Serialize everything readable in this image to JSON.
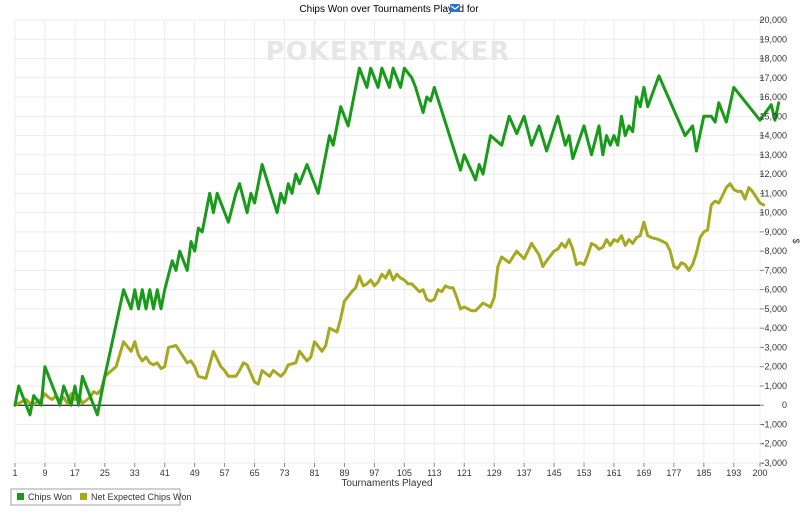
{
  "watermark": "POKERTRACKER",
  "chart_data": {
    "type": "line",
    "title": "Chips Won over Tournaments Played for",
    "xlabel": "Tournaments Played",
    "ylabel": "",
    "xlim": [
      1,
      200
    ],
    "ylim": [
      -3000,
      20000
    ],
    "x_ticks": [
      "1",
      "9",
      "17",
      "25",
      "33",
      "41",
      "49",
      "57",
      "65",
      "73",
      "81",
      "89",
      "97",
      "105",
      "113",
      "121",
      "129",
      "137",
      "145",
      "153",
      "161",
      "169",
      "177",
      "185",
      "193",
      "200"
    ],
    "y_ticks": [
      "20,000",
      "19,000",
      "18,000",
      "17,000",
      "16,000",
      "15,000",
      "14,000",
      "13,000",
      "12,000",
      "11,000",
      "10,000",
      "9,000",
      "8,000",
      "7,000",
      "6,000",
      "5,000",
      "4,000",
      "3,000",
      "2,000",
      "1,000",
      "0",
      "-1,000",
      "-2,000",
      "-3,000"
    ],
    "legend_position": "bottom-left",
    "grid": true,
    "series": [
      {
        "name": "Chips Won",
        "color": "#1a9a1a",
        "points": [
          [
            1,
            0
          ],
          [
            2,
            1000
          ],
          [
            4,
            0
          ],
          [
            5,
            -500
          ],
          [
            6,
            500
          ],
          [
            8,
            0
          ],
          [
            9,
            2000
          ],
          [
            12,
            500
          ],
          [
            13,
            0
          ],
          [
            14,
            1000
          ],
          [
            16,
            0
          ],
          [
            17,
            1000
          ],
          [
            18,
            0
          ],
          [
            19,
            1500
          ],
          [
            22,
            0
          ],
          [
            23,
            -500
          ],
          [
            25,
            1500
          ],
          [
            30,
            6000
          ],
          [
            32,
            5000
          ],
          [
            33,
            6000
          ],
          [
            34,
            5000
          ],
          [
            35,
            6000
          ],
          [
            36,
            5000
          ],
          [
            37,
            6000
          ],
          [
            38,
            5000
          ],
          [
            39,
            6000
          ],
          [
            40,
            5000
          ],
          [
            41,
            6000
          ],
          [
            43,
            7500
          ],
          [
            44,
            7000
          ],
          [
            45,
            8000
          ],
          [
            47,
            7000
          ],
          [
            48,
            8500
          ],
          [
            49,
            8000
          ],
          [
            50,
            9200
          ],
          [
            51,
            9000
          ],
          [
            53,
            11000
          ],
          [
            54,
            10000
          ],
          [
            55,
            11000
          ],
          [
            58,
            9500
          ],
          [
            60,
            11000
          ],
          [
            61,
            11500
          ],
          [
            63,
            10000
          ],
          [
            64,
            11000
          ],
          [
            65,
            10500
          ],
          [
            67,
            12500
          ],
          [
            71,
            10000
          ],
          [
            72,
            11000
          ],
          [
            73,
            10500
          ],
          [
            74,
            11500
          ],
          [
            75,
            11000
          ],
          [
            76,
            12000
          ],
          [
            77,
            11500
          ],
          [
            79,
            12500
          ],
          [
            82,
            11000
          ],
          [
            85,
            14000
          ],
          [
            86,
            13500
          ],
          [
            88,
            15500
          ],
          [
            90,
            14500
          ],
          [
            93,
            17500
          ],
          [
            95,
            16500
          ],
          [
            96,
            17500
          ],
          [
            98,
            16500
          ],
          [
            99,
            17500
          ],
          [
            101,
            16500
          ],
          [
            102,
            17500
          ],
          [
            104,
            16500
          ],
          [
            105,
            17500
          ],
          [
            107,
            17000
          ],
          [
            108,
            16500
          ],
          [
            110,
            15200
          ],
          [
            111,
            16000
          ],
          [
            112,
            15800
          ],
          [
            113,
            16500
          ],
          [
            120,
            12200
          ],
          [
            121,
            13000
          ],
          [
            124,
            11700
          ],
          [
            125,
            12500
          ],
          [
            126,
            12000
          ],
          [
            128,
            14000
          ],
          [
            131,
            13500
          ],
          [
            133,
            15000
          ],
          [
            135,
            14100
          ],
          [
            137,
            15000
          ],
          [
            139,
            13500
          ],
          [
            141,
            14500
          ],
          [
            143,
            13200
          ],
          [
            146,
            15000
          ],
          [
            148,
            13500
          ],
          [
            149,
            14000
          ],
          [
            150,
            12800
          ],
          [
            153,
            14500
          ],
          [
            155,
            13000
          ],
          [
            157,
            14500
          ],
          [
            158,
            13000
          ],
          [
            159,
            14000
          ],
          [
            160,
            13500
          ],
          [
            161,
            14000
          ],
          [
            162,
            13500
          ],
          [
            163,
            15000
          ],
          [
            164,
            14000
          ],
          [
            165,
            14500
          ],
          [
            166,
            14200
          ],
          [
            167,
            16000
          ],
          [
            168,
            15500
          ],
          [
            169,
            16500
          ],
          [
            170,
            15500
          ],
          [
            173,
            17100
          ],
          [
            180,
            14000
          ],
          [
            182,
            14500
          ],
          [
            183,
            13200
          ],
          [
            185,
            15000
          ],
          [
            187,
            15000
          ],
          [
            188,
            14700
          ],
          [
            189,
            15700
          ],
          [
            191,
            14700
          ],
          [
            193,
            16500
          ],
          [
            200,
            14800
          ],
          [
            203,
            15600
          ],
          [
            204,
            14800
          ],
          [
            205,
            15700
          ]
        ]
      },
      {
        "name": "Net Expected Chips Won",
        "color": "#a8a820",
        "points": [
          [
            1,
            0
          ],
          [
            2,
            100
          ],
          [
            4,
            300
          ],
          [
            5,
            100
          ],
          [
            6,
            50
          ],
          [
            8,
            300
          ],
          [
            9,
            600
          ],
          [
            10,
            400
          ],
          [
            11,
            300
          ],
          [
            12,
            500
          ],
          [
            13,
            200
          ],
          [
            14,
            400
          ],
          [
            15,
            100
          ],
          [
            16,
            600
          ],
          [
            17,
            300
          ],
          [
            18,
            500
          ],
          [
            19,
            100
          ],
          [
            21,
            400
          ],
          [
            22,
            700
          ],
          [
            23,
            600
          ],
          [
            24,
            800
          ],
          [
            25,
            1500
          ],
          [
            28,
            2000
          ],
          [
            30,
            3300
          ],
          [
            32,
            2800
          ],
          [
            33,
            3300
          ],
          [
            34,
            2600
          ],
          [
            35,
            2300
          ],
          [
            36,
            2500
          ],
          [
            37,
            2200
          ],
          [
            38,
            2100
          ],
          [
            39,
            2200
          ],
          [
            40,
            1900
          ],
          [
            41,
            2000
          ],
          [
            42,
            3000
          ],
          [
            44,
            3100
          ],
          [
            45,
            2800
          ],
          [
            46,
            2500
          ],
          [
            47,
            2200
          ],
          [
            48,
            2300
          ],
          [
            49,
            2000
          ],
          [
            50,
            1500
          ],
          [
            52,
            1400
          ],
          [
            54,
            2800
          ],
          [
            56,
            2000
          ],
          [
            57,
            1800
          ],
          [
            58,
            1500
          ],
          [
            60,
            1500
          ],
          [
            61,
            1800
          ],
          [
            62,
            2200
          ],
          [
            63,
            2100
          ],
          [
            65,
            1200
          ],
          [
            66,
            1100
          ],
          [
            67,
            1800
          ],
          [
            69,
            1500
          ],
          [
            70,
            1800
          ],
          [
            72,
            1500
          ],
          [
            73,
            1700
          ],
          [
            74,
            2100
          ],
          [
            76,
            2200
          ],
          [
            77,
            2800
          ],
          [
            79,
            2300
          ],
          [
            80,
            2500
          ],
          [
            81,
            3300
          ],
          [
            83,
            2800
          ],
          [
            84,
            3100
          ],
          [
            85,
            4000
          ],
          [
            87,
            3800
          ],
          [
            88,
            4500
          ],
          [
            89,
            5400
          ],
          [
            91,
            5900
          ],
          [
            92,
            6100
          ],
          [
            93,
            6700
          ],
          [
            94,
            6200
          ],
          [
            95,
            6300
          ],
          [
            96,
            6500
          ],
          [
            97,
            6200
          ],
          [
            98,
            6400
          ],
          [
            99,
            6800
          ],
          [
            100,
            6600
          ],
          [
            101,
            7000
          ],
          [
            102,
            6500
          ],
          [
            103,
            6800
          ],
          [
            104,
            6600
          ],
          [
            105,
            6500
          ],
          [
            106,
            6300
          ],
          [
            107,
            6300
          ],
          [
            108,
            6100
          ],
          [
            109,
            5900
          ],
          [
            110,
            6000
          ],
          [
            111,
            5500
          ],
          [
            112,
            5400
          ],
          [
            113,
            5500
          ],
          [
            114,
            6000
          ],
          [
            115,
            5900
          ],
          [
            116,
            6200
          ],
          [
            117,
            6100
          ],
          [
            118,
            6100
          ],
          [
            119,
            5600
          ],
          [
            120,
            5000
          ],
          [
            121,
            5100
          ],
          [
            122,
            5000
          ],
          [
            123,
            4900
          ],
          [
            124,
            4900
          ],
          [
            126,
            5300
          ],
          [
            128,
            5100
          ],
          [
            129,
            5600
          ],
          [
            130,
            7200
          ],
          [
            131,
            7700
          ],
          [
            133,
            7400
          ],
          [
            135,
            8000
          ],
          [
            136,
            7800
          ],
          [
            137,
            7600
          ],
          [
            138,
            8000
          ],
          [
            139,
            8400
          ],
          [
            140,
            8100
          ],
          [
            141,
            7800
          ],
          [
            142,
            7200
          ],
          [
            143,
            7500
          ],
          [
            145,
            8000
          ],
          [
            146,
            8100
          ],
          [
            147,
            8400
          ],
          [
            148,
            8200
          ],
          [
            149,
            8600
          ],
          [
            150,
            8100
          ],
          [
            151,
            7300
          ],
          [
            152,
            7400
          ],
          [
            153,
            7300
          ],
          [
            154,
            7800
          ],
          [
            155,
            8400
          ],
          [
            156,
            8300
          ],
          [
            157,
            8100
          ],
          [
            158,
            8200
          ],
          [
            159,
            8600
          ],
          [
            160,
            8300
          ],
          [
            161,
            8600
          ],
          [
            162,
            8500
          ],
          [
            163,
            8800
          ],
          [
            164,
            8300
          ],
          [
            165,
            8600
          ],
          [
            166,
            8400
          ],
          [
            167,
            8700
          ],
          [
            168,
            8800
          ],
          [
            169,
            9500
          ],
          [
            170,
            8800
          ],
          [
            171,
            8700
          ],
          [
            173,
            8600
          ],
          [
            175,
            8400
          ],
          [
            176,
            8000
          ],
          [
            177,
            7200
          ],
          [
            178,
            7100
          ],
          [
            179,
            7400
          ],
          [
            180,
            7300
          ],
          [
            181,
            7000
          ],
          [
            182,
            7300
          ],
          [
            183,
            7900
          ],
          [
            184,
            8700
          ],
          [
            185,
            9000
          ],
          [
            186,
            9100
          ],
          [
            187,
            10400
          ],
          [
            188,
            10600
          ],
          [
            189,
            10500
          ],
          [
            191,
            11300
          ],
          [
            192,
            11500
          ],
          [
            193,
            11200
          ],
          [
            194,
            11100
          ],
          [
            195,
            11100
          ],
          [
            196,
            10700
          ],
          [
            197,
            11300
          ],
          [
            198,
            11100
          ],
          [
            200,
            10500
          ],
          [
            201,
            10400
          ]
        ]
      }
    ]
  }
}
